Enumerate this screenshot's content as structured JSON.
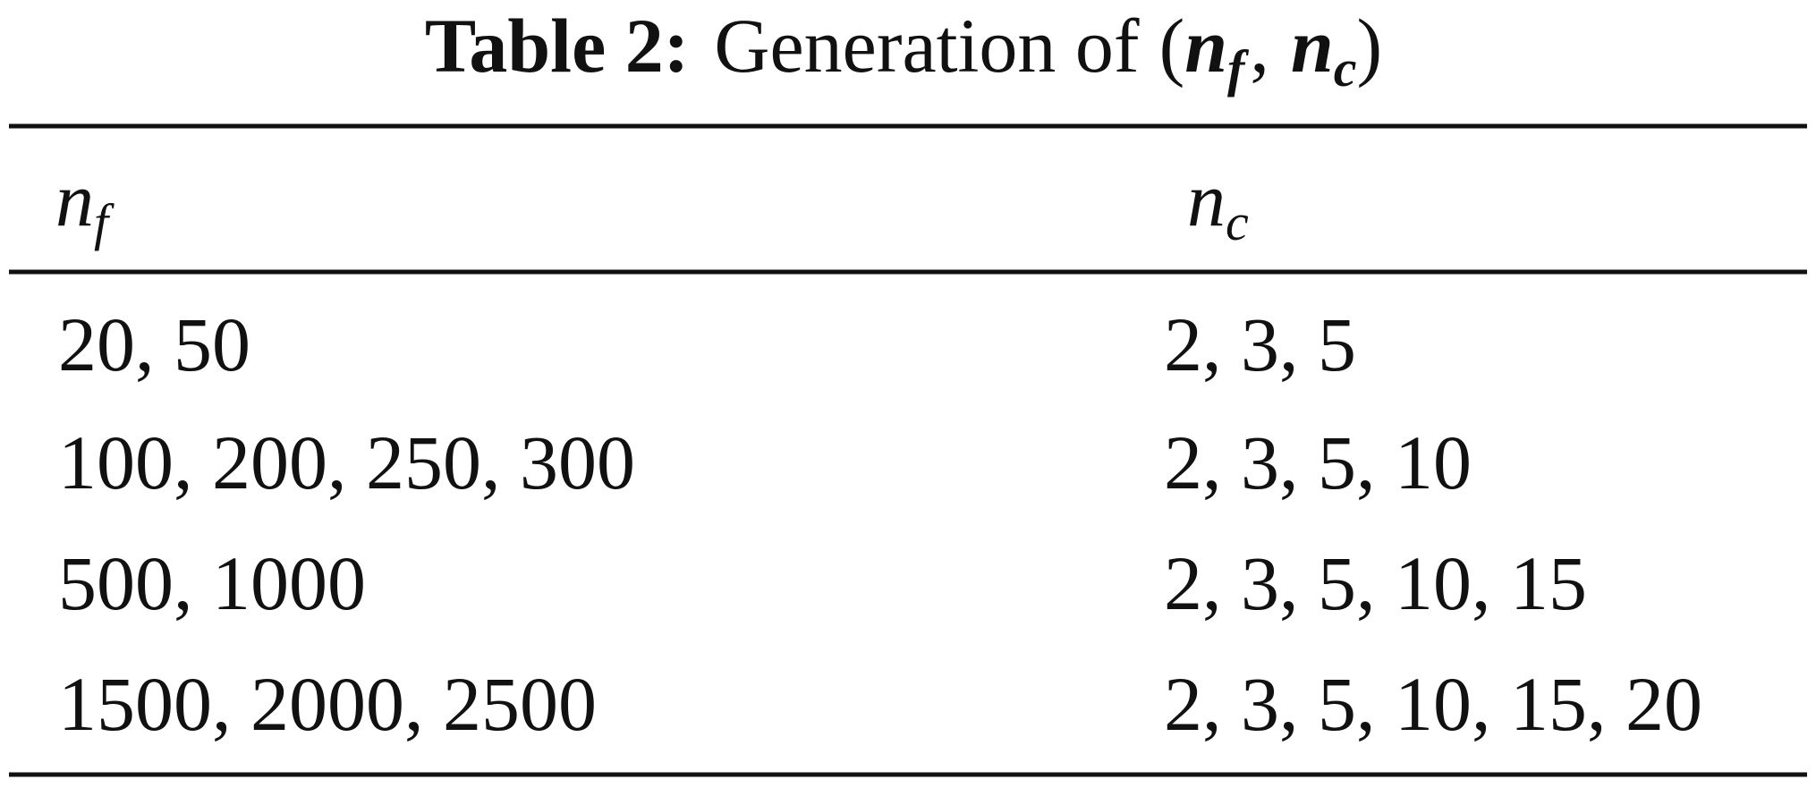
{
  "title": {
    "label": "Table 2:",
    "text": "Generation of",
    "open": "(",
    "var1": {
      "base": "n",
      "sub": "f"
    },
    "sep": ",",
    "var2": {
      "base": "n",
      "sub": "c"
    },
    "close": ")"
  },
  "table": {
    "header": [
      {
        "base": "n",
        "sub": "f"
      },
      {
        "base": "n",
        "sub": "c"
      }
    ],
    "rows": [
      [
        "20, 50",
        "2, 3, 5"
      ],
      [
        "100, 200, 250, 300",
        "2, 3, 5, 10"
      ],
      [
        "500, 1000",
        "2, 3, 5, 10, 15"
      ],
      [
        "1500, 2000, 2500",
        "2, 3, 5, 10, 15, 20"
      ]
    ]
  }
}
